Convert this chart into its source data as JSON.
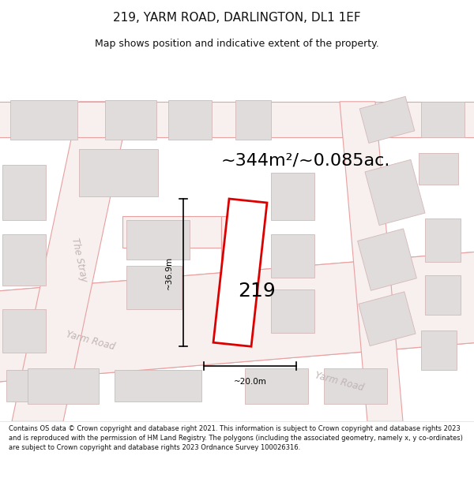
{
  "title": "219, YARM ROAD, DARLINGTON, DL1 1EF",
  "subtitle": "Map shows position and indicative extent of the property.",
  "area_text": "~344m²/~0.085ac.",
  "width_label": "~20.0m",
  "height_label": "~36.9m",
  "property_number": "219",
  "footer_text": "Contains OS data © Crown copyright and database right 2021. This information is subject to Crown copyright and database rights 2023 and is reproduced with the permission of HM Land Registry. The polygons (including the associated geometry, namely x, y co-ordinates) are subject to Crown copyright and database rights 2023 Ordnance Survey 100026316.",
  "map_bg": "#ffffff",
  "road_line_color": "#e8a0a0",
  "road_fill_color": "#f8efef",
  "bldg_fill": "#e0dcdc",
  "bldg_edge": "#d4b8b8",
  "plot_edge": "#dd0000",
  "plot_fill": "#ffffff",
  "road_label_color": "#c0b4b4",
  "text_color": "#111111",
  "dim_color": "#000000",
  "title_fontsize": 11,
  "subtitle_fontsize": 9,
  "area_fontsize": 16,
  "number_fontsize": 18,
  "road_label_fontsize": 8.5,
  "dim_fontsize": 7.5,
  "footer_fontsize": 6.0
}
